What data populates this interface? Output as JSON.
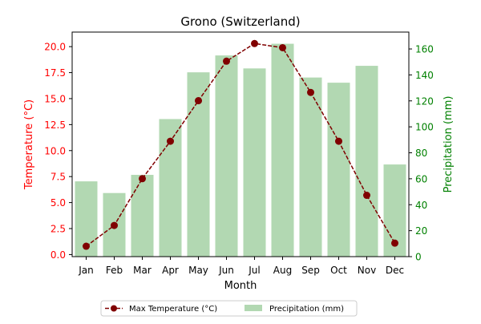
{
  "chart_data": {
    "type": "bar+line",
    "title": "Grono (Switzerland)",
    "xlabel": "Month",
    "categories": [
      "Jan",
      "Feb",
      "Mar",
      "Apr",
      "May",
      "Jun",
      "Jul",
      "Aug",
      "Sep",
      "Oct",
      "Nov",
      "Dec"
    ],
    "left_axis": {
      "label": "Temperature (°C)",
      "ylim": [
        -0.2,
        21.4
      ],
      "ticks": [
        "0.0",
        "2.5",
        "5.0",
        "7.5",
        "10.0",
        "12.5",
        "15.0",
        "17.5",
        "20.0"
      ],
      "color": "#ff0000"
    },
    "right_axis": {
      "label": "Precipitation (mm)",
      "ylim": [
        0,
        173
      ],
      "ticks": [
        "0",
        "20",
        "40",
        "60",
        "80",
        "100",
        "120",
        "140",
        "160"
      ],
      "color": "#008000"
    },
    "series": [
      {
        "name": "Max Temperature (°C)",
        "type": "line",
        "axis": "left",
        "color": "#800000",
        "values": [
          0.8,
          2.8,
          7.3,
          10.9,
          14.8,
          18.6,
          20.3,
          19.9,
          15.6,
          10.9,
          5.7,
          1.1
        ]
      },
      {
        "name": "Precipitation (mm)",
        "type": "bar",
        "axis": "right",
        "color": "#b2d8b2",
        "values": [
          58,
          49,
          63,
          106,
          142,
          155,
          145,
          164,
          138,
          134,
          147,
          71
        ]
      }
    ],
    "legend": {
      "position": "bottom-center"
    },
    "grid": false
  }
}
